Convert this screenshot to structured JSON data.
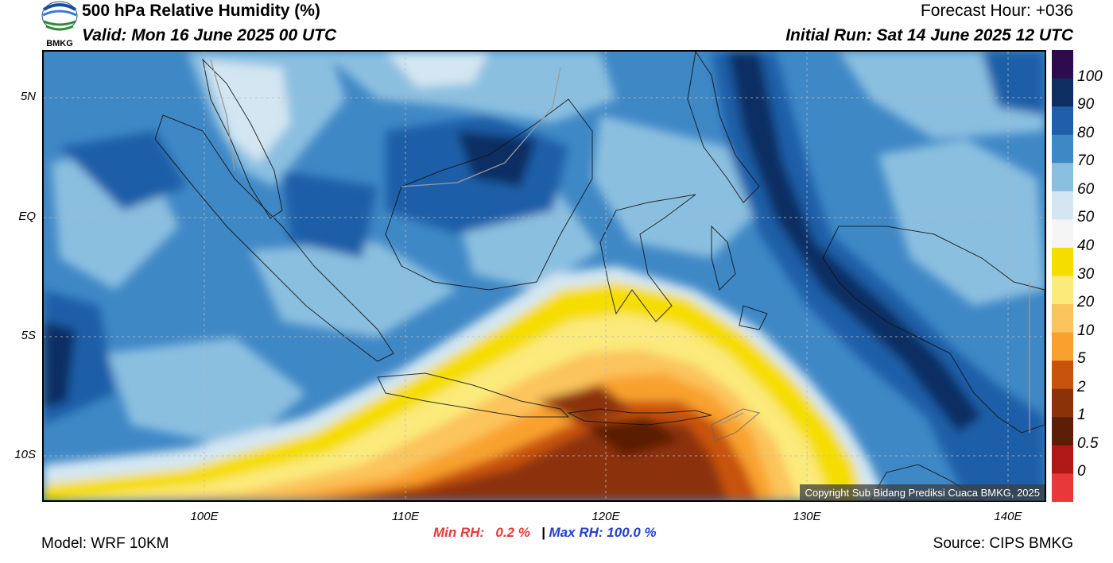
{
  "header": {
    "title": "500 hPa Relative Humidity (%)",
    "valid": "Valid: Mon 16 June 2025 00 UTC",
    "forecast_hour": "Forecast Hour: +036",
    "initial_run": "Initial Run: Sat 14 June 2025 12 UTC"
  },
  "logo": {
    "text": "BMKG"
  },
  "axes": {
    "lat_labels": [
      "5N",
      "EQ",
      "5S",
      "10S"
    ],
    "lon_labels": [
      "100E",
      "110E",
      "120E",
      "130E",
      "140E"
    ]
  },
  "stats": {
    "min_label": "Min RH:",
    "min_value": "0.2 %",
    "separator": "|",
    "max_label": "Max RH:",
    "max_value": "100.0 %"
  },
  "footer": {
    "model": "Model: WRF 10KM",
    "source": "Source: CIPS BMKG",
    "copyright": "Copyright Sub Bidang Prediksi Cuaca BMKG, 2025"
  },
  "colorbar": {
    "labels": [
      "100",
      "90",
      "80",
      "70",
      "60",
      "50",
      "40",
      "30",
      "20",
      "10",
      "5",
      "2",
      "1",
      "0.5",
      "0"
    ],
    "colors": [
      "#2e0a4f",
      "#0d2e63",
      "#1f5ea8",
      "#3f88c6",
      "#8bbfe0",
      "#d3e6f2",
      "#f5f5f5",
      "#f6dd00",
      "#fbea7c",
      "#fbc45c",
      "#f9a12f",
      "#c8530c",
      "#8b3208",
      "#5c1e06",
      "#b01818",
      "#e8383a"
    ]
  }
}
